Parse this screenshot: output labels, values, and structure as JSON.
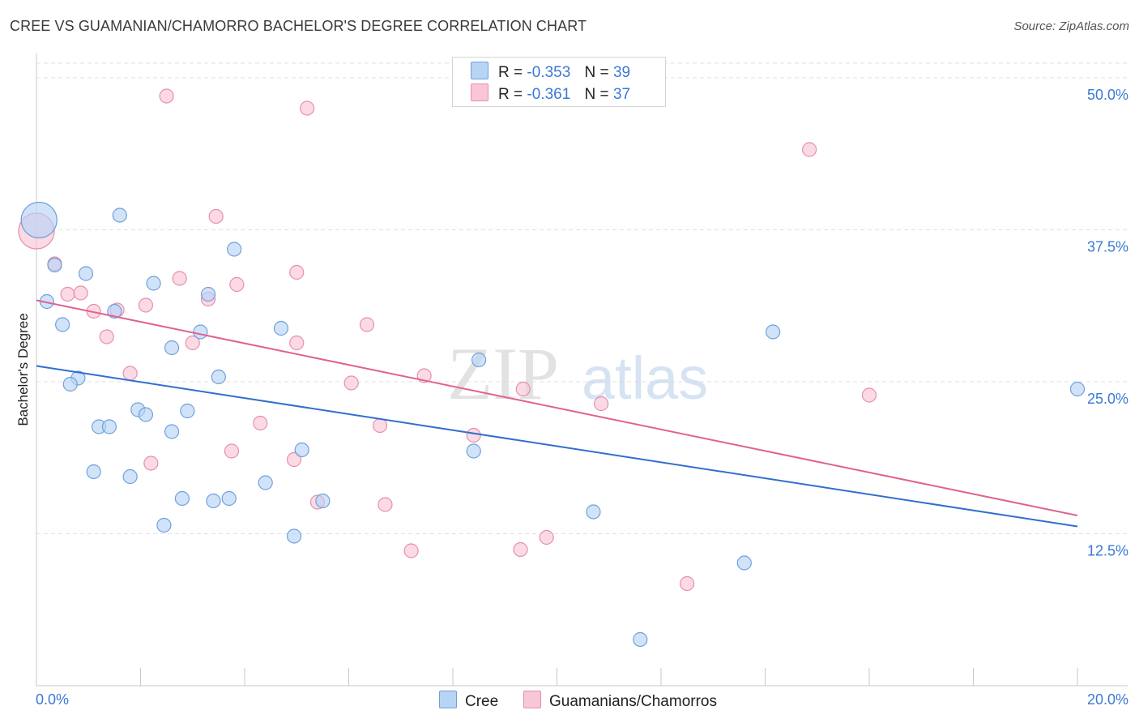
{
  "title": "CREE VS GUAMANIAN/CHAMORRO BACHELOR'S DEGREE CORRELATION CHART",
  "source": "Source: ZipAtlas.com",
  "watermark": {
    "zip": "ZIP",
    "atlas": "atlas"
  },
  "colors": {
    "cree_fill": "#b8d4f5",
    "cree_stroke": "#6fa0dc",
    "cree_line": "#2f6fd0",
    "guam_fill": "#f9c6d6",
    "guam_stroke": "#e58fae",
    "guam_line": "#e0628e",
    "tick_label": "#3a78d4",
    "grid": "#e2e2e2"
  },
  "legend_top": {
    "rows": [
      {
        "r_label": "R =",
        "r_value": "-0.353",
        "n_label": "N =",
        "n_value": "39",
        "swatch": "cree"
      },
      {
        "r_label": "R =",
        "r_value": "-0.361",
        "n_label": "N =",
        "n_value": "37",
        "swatch": "guam"
      }
    ]
  },
  "legend_bottom": [
    {
      "label": "Cree",
      "swatch": "cree"
    },
    {
      "label": "Guamanians/Chamorros",
      "swatch": "guam"
    }
  ],
  "chart_data": {
    "type": "scatter",
    "title": "CREE VS GUAMANIAN/CHAMORRO BACHELOR'S DEGREE CORRELATION CHART",
    "xlabel": "",
    "ylabel": "Bachelor's Degree",
    "xlim": [
      0,
      20
    ],
    "ylim": [
      0,
      52
    ],
    "x_tick_labels": [
      "0.0%",
      "20.0%"
    ],
    "y_ticks": [
      12.5,
      25.0,
      37.5,
      50.0
    ],
    "y_tick_labels": [
      "12.5%",
      "25.0%",
      "37.5%",
      "50.0%"
    ],
    "grid": true,
    "legend_position": "top-center",
    "series": [
      {
        "name": "Cree",
        "color": "#6fa0dc",
        "trend": {
          "x": [
            0,
            20
          ],
          "y": [
            26.3,
            13.1
          ]
        },
        "points": [
          {
            "x": 0.05,
            "y": 38.3,
            "big": true
          },
          {
            "x": 0.35,
            "y": 34.6
          },
          {
            "x": 0.2,
            "y": 31.6
          },
          {
            "x": 0.5,
            "y": 29.7
          },
          {
            "x": 0.95,
            "y": 33.9
          },
          {
            "x": 1.6,
            "y": 38.7
          },
          {
            "x": 1.5,
            "y": 30.8
          },
          {
            "x": 2.25,
            "y": 33.1
          },
          {
            "x": 3.3,
            "y": 32.2
          },
          {
            "x": 3.8,
            "y": 35.9
          },
          {
            "x": 2.6,
            "y": 27.8
          },
          {
            "x": 3.15,
            "y": 29.1
          },
          {
            "x": 4.7,
            "y": 29.4
          },
          {
            "x": 0.8,
            "y": 25.3
          },
          {
            "x": 0.65,
            "y": 24.8
          },
          {
            "x": 3.5,
            "y": 25.4
          },
          {
            "x": 1.95,
            "y": 22.7
          },
          {
            "x": 2.1,
            "y": 22.3
          },
          {
            "x": 2.9,
            "y": 22.6
          },
          {
            "x": 1.2,
            "y": 21.3
          },
          {
            "x": 1.4,
            "y": 21.3
          },
          {
            "x": 2.6,
            "y": 20.9
          },
          {
            "x": 5.1,
            "y": 19.4
          },
          {
            "x": 8.4,
            "y": 19.3
          },
          {
            "x": 8.5,
            "y": 26.8
          },
          {
            "x": 1.1,
            "y": 17.6
          },
          {
            "x": 1.8,
            "y": 17.2
          },
          {
            "x": 4.4,
            "y": 16.7
          },
          {
            "x": 2.8,
            "y": 15.4
          },
          {
            "x": 3.4,
            "y": 15.2
          },
          {
            "x": 3.7,
            "y": 15.4
          },
          {
            "x": 5.5,
            "y": 15.2
          },
          {
            "x": 2.45,
            "y": 13.2
          },
          {
            "x": 4.95,
            "y": 12.3
          },
          {
            "x": 10.7,
            "y": 14.3
          },
          {
            "x": 14.15,
            "y": 29.1
          },
          {
            "x": 13.6,
            "y": 10.1
          },
          {
            "x": 11.6,
            "y": 3.8
          },
          {
            "x": 20.0,
            "y": 24.4
          }
        ]
      },
      {
        "name": "Guamanians/Chamorros",
        "color": "#e58fae",
        "trend": {
          "x": [
            0,
            20
          ],
          "y": [
            31.7,
            14.0
          ]
        },
        "points": [
          {
            "x": 0.0,
            "y": 37.4,
            "big": true
          },
          {
            "x": 2.5,
            "y": 48.5
          },
          {
            "x": 5.2,
            "y": 47.5
          },
          {
            "x": 14.85,
            "y": 44.1
          },
          {
            "x": 3.45,
            "y": 38.6
          },
          {
            "x": 0.35,
            "y": 34.7
          },
          {
            "x": 5.0,
            "y": 34.0
          },
          {
            "x": 2.75,
            "y": 33.5
          },
          {
            "x": 3.85,
            "y": 33.0
          },
          {
            "x": 0.6,
            "y": 32.2
          },
          {
            "x": 0.85,
            "y": 32.3
          },
          {
            "x": 3.3,
            "y": 31.8
          },
          {
            "x": 2.1,
            "y": 31.3
          },
          {
            "x": 1.1,
            "y": 30.8
          },
          {
            "x": 1.55,
            "y": 30.9
          },
          {
            "x": 6.35,
            "y": 29.7
          },
          {
            "x": 1.35,
            "y": 28.7
          },
          {
            "x": 3.0,
            "y": 28.2
          },
          {
            "x": 5.0,
            "y": 28.2
          },
          {
            "x": 1.8,
            "y": 25.7
          },
          {
            "x": 7.45,
            "y": 25.5
          },
          {
            "x": 6.05,
            "y": 24.9
          },
          {
            "x": 9.35,
            "y": 24.4
          },
          {
            "x": 10.85,
            "y": 23.2
          },
          {
            "x": 16.0,
            "y": 23.9
          },
          {
            "x": 4.3,
            "y": 21.6
          },
          {
            "x": 6.6,
            "y": 21.4
          },
          {
            "x": 8.4,
            "y": 20.6
          },
          {
            "x": 3.75,
            "y": 19.3
          },
          {
            "x": 2.2,
            "y": 18.3
          },
          {
            "x": 4.95,
            "y": 18.6
          },
          {
            "x": 5.4,
            "y": 15.1
          },
          {
            "x": 6.7,
            "y": 14.9
          },
          {
            "x": 9.8,
            "y": 12.2
          },
          {
            "x": 7.2,
            "y": 11.1
          },
          {
            "x": 9.3,
            "y": 11.2
          },
          {
            "x": 12.5,
            "y": 8.4
          }
        ]
      }
    ]
  }
}
